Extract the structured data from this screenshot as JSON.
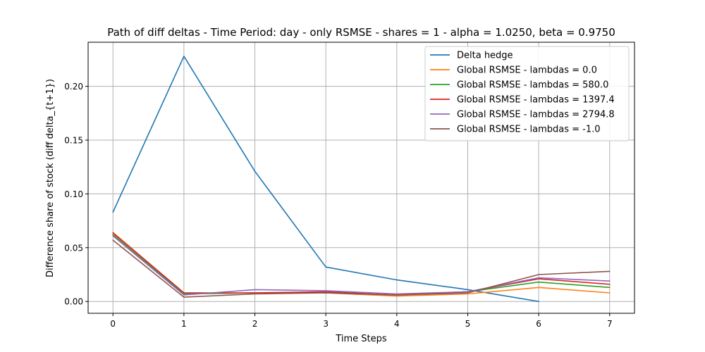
{
  "chart_data": {
    "type": "line",
    "title": "Path of diff deltas - Time Period: day - only RSMSE - shares = 1 - alpha = 1.0250, beta = 0.9750",
    "xlabel": "Time Steps",
    "ylabel": "Difference share of stock (diff delta_{t+1})",
    "xlim": [
      -0.35,
      7.35
    ],
    "ylim": [
      -0.011,
      0.241
    ],
    "xticks": [
      0,
      1,
      2,
      3,
      4,
      5,
      6,
      7
    ],
    "xtick_labels": [
      "0",
      "1",
      "2",
      "3",
      "4",
      "5",
      "6",
      "7"
    ],
    "yticks": [
      0.0,
      0.05,
      0.1,
      0.15,
      0.2
    ],
    "ytick_labels": [
      "0.00",
      "0.05",
      "0.10",
      "0.15",
      "0.20"
    ],
    "grid": true,
    "legend_position": "top-right",
    "series": [
      {
        "name": "Delta hedge",
        "color": "#1f77b4",
        "x": [
          0,
          1,
          2,
          3,
          4,
          5,
          6
        ],
        "values": [
          0.083,
          0.228,
          0.121,
          0.032,
          0.02,
          0.011,
          0.0
        ]
      },
      {
        "name": "Global RSMSE - lambdas = 0.0",
        "color": "#ff7f0e",
        "x": [
          0,
          1,
          2,
          3,
          4,
          5,
          6,
          7
        ],
        "values": [
          0.063,
          0.007,
          0.008,
          0.008,
          0.005,
          0.007,
          0.013,
          0.008
        ]
      },
      {
        "name": "Global RSMSE - lambdas = 580.0",
        "color": "#2ca02c",
        "x": [
          0,
          1,
          2,
          3,
          4,
          5,
          6,
          7
        ],
        "values": [
          0.062,
          0.007,
          0.008,
          0.008,
          0.006,
          0.009,
          0.018,
          0.013
        ]
      },
      {
        "name": "Global RSMSE - lambdas = 1397.4",
        "color": "#d62728",
        "x": [
          0,
          1,
          2,
          3,
          4,
          5,
          6,
          7
        ],
        "values": [
          0.064,
          0.008,
          0.008,
          0.009,
          0.006,
          0.009,
          0.021,
          0.016
        ]
      },
      {
        "name": "Global RSMSE - lambdas = 2794.8",
        "color": "#9467bd",
        "x": [
          0,
          1,
          2,
          3,
          4,
          5,
          6,
          7
        ],
        "values": [
          0.061,
          0.006,
          0.011,
          0.01,
          0.007,
          0.009,
          0.022,
          0.019
        ]
      },
      {
        "name": "Global RSMSE - lambdas = -1.0",
        "color": "#8c564b",
        "x": [
          0,
          1,
          2,
          3,
          4,
          5,
          6,
          7
        ],
        "values": [
          0.057,
          0.004,
          0.007,
          0.008,
          0.006,
          0.008,
          0.025,
          0.028
        ]
      }
    ]
  }
}
